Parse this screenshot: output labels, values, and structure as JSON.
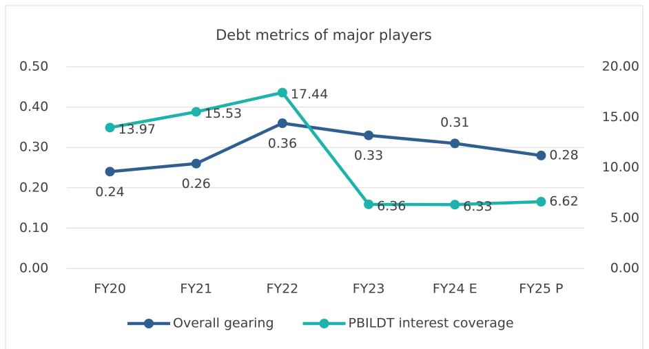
{
  "chart_data": {
    "type": "line",
    "title": "Debt metrics of major players",
    "categories": [
      "FY20",
      "FY21",
      "FY22",
      "FY23",
      "FY24 E",
      "FY25 P"
    ],
    "series": [
      {
        "name": "Overall gearing",
        "color": "#2e5f8f",
        "values": [
          0.24,
          0.26,
          0.36,
          0.33,
          0.31,
          0.28
        ]
      },
      {
        "name": "PBILDT interest coverage",
        "color": "#1db3aa",
        "axis": "y2",
        "values": [
          13.97,
          15.53,
          17.44,
          6.36,
          6.33,
          6.62
        ]
      }
    ],
    "ylim": [
      0,
      0.5
    ],
    "yticks": [
      {
        "value": 0,
        "label": "0.00"
      },
      {
        "value": 0.1,
        "label": "0.10"
      },
      {
        "value": 0.2,
        "label": "0.20"
      },
      {
        "value": 0.3,
        "label": "0.30"
      },
      {
        "value": 0.4,
        "label": "0.40"
      },
      {
        "value": 0.5,
        "label": "0.50"
      }
    ],
    "y2lim": [
      0,
      20
    ],
    "y2ticks": [
      {
        "value": 0,
        "label": "0.00"
      },
      {
        "value": 5,
        "label": "5.00"
      },
      {
        "value": 10,
        "label": "10.00"
      },
      {
        "value": 15,
        "label": "15.00"
      },
      {
        "value": 20,
        "label": "20.00"
      }
    ],
    "grid": true,
    "legend": "bottom"
  }
}
